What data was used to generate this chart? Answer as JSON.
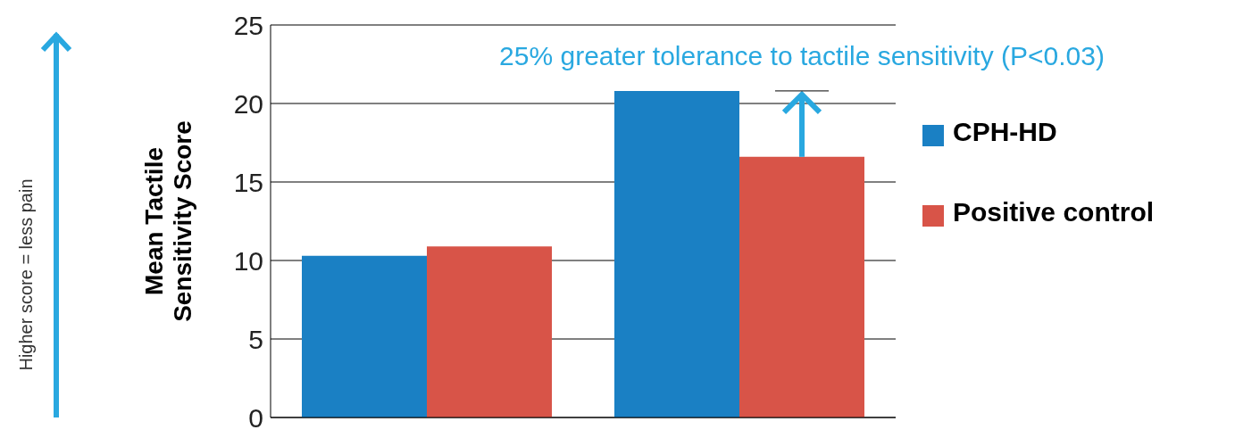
{
  "chart_data": {
    "type": "bar",
    "categories": [
      null,
      null
    ],
    "series": [
      {
        "name": "CPH-HD",
        "color": "#1a80c4",
        "values": [
          10.3,
          20.8
        ]
      },
      {
        "name": "Positive control",
        "color": "#d85448",
        "values": [
          10.9,
          16.6
        ]
      }
    ],
    "ylabel": "Mean Tactile Sensitivity Score",
    "ylim": [
      0,
      25
    ],
    "yticks": [
      0,
      5,
      10,
      15,
      20,
      25
    ],
    "grid": "y",
    "legend": "right",
    "annotations": [
      "25% greater tolerance to tactile sensitivity (P<0.03)",
      "Higher score = less pain"
    ]
  }
}
